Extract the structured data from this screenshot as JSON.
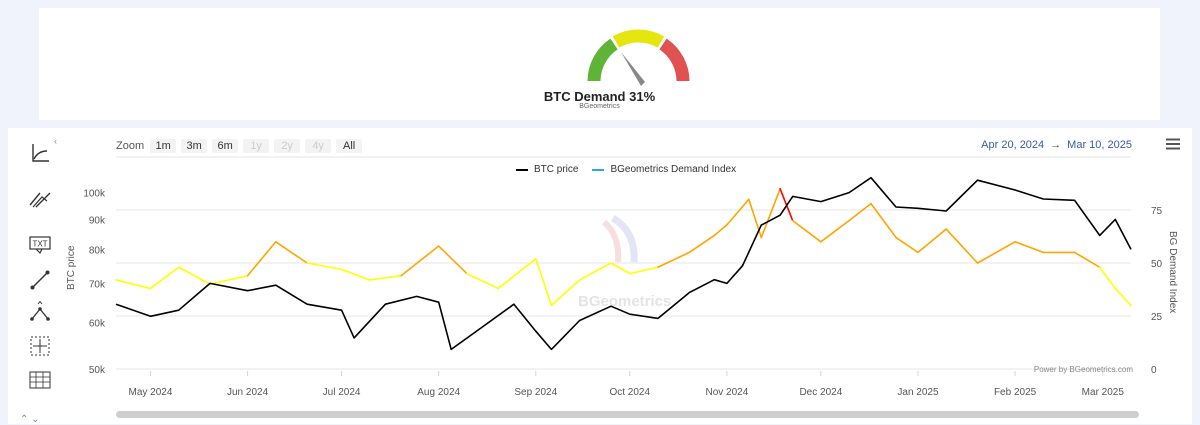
{
  "gauge": {
    "title": "BTC Demand 31%",
    "subtitle": "BGeometrics",
    "value": 31,
    "colors": {
      "low": "#5fb437",
      "mid": "#e5e510",
      "high": "#e05252",
      "needle": "#888888"
    }
  },
  "toolbar": {
    "items": [
      "line-tool-icon",
      "trend-lines-icon",
      "text-annotation-icon",
      "segment-icon",
      "angle-tool-icon",
      "crosshair-icon",
      "table-icon"
    ],
    "txt_label": "TXT"
  },
  "zoom": {
    "label": "Zoom",
    "buttons": [
      "1m",
      "3m",
      "6m",
      "1y",
      "2y",
      "4y",
      "All"
    ],
    "disabled": [
      "1y",
      "2y",
      "4y"
    ]
  },
  "range": {
    "from": "Apr 20, 2024",
    "arrow": "→",
    "to": "Mar 10, 2025"
  },
  "credit": "Power by BGeometrics.com",
  "watermark": "BGeometrics",
  "colors": {
    "price": "#000000",
    "index_legend": "#2aa8e0",
    "yellow": "#ffff00",
    "orange": "#ffa500",
    "red": "#ff0000",
    "green": "#1a8a1a"
  },
  "chart_data": {
    "type": "line",
    "series": [
      {
        "name": "BTC price",
        "axis": "left",
        "x": [
          "2024-04-20",
          "2024-05-01",
          "2024-05-10",
          "2024-05-20",
          "2024-06-01",
          "2024-06-10",
          "2024-06-20",
          "2024-07-01",
          "2024-07-05",
          "2024-07-15",
          "2024-07-25",
          "2024-08-01",
          "2024-08-05",
          "2024-08-15",
          "2024-08-25",
          "2024-09-01",
          "2024-09-06",
          "2024-09-15",
          "2024-09-25",
          "2024-10-01",
          "2024-10-10",
          "2024-10-20",
          "2024-10-28",
          "2024-11-01",
          "2024-11-06",
          "2024-11-12",
          "2024-11-18",
          "2024-11-22",
          "2024-12-01",
          "2024-12-10",
          "2024-12-17",
          "2024-12-25",
          "2025-01-01",
          "2025-01-10",
          "2025-01-20",
          "2025-02-01",
          "2025-02-10",
          "2025-02-20",
          "2025-02-28",
          "2025-03-05",
          "2025-03-10"
        ],
        "values": [
          64500,
          61500,
          63000,
          70000,
          68000,
          69500,
          64500,
          63000,
          56500,
          64500,
          66500,
          65000,
          54000,
          59000,
          64500,
          58000,
          54000,
          60500,
          64000,
          62000,
          61000,
          67500,
          71000,
          70000,
          75000,
          88000,
          91500,
          98500,
          96500,
          100000,
          106000,
          94500,
          94000,
          93000,
          105000,
          101000,
          97500,
          97000,
          84500,
          90000,
          80000
        ]
      },
      {
        "name": "BGeometrics Demand Index",
        "axis": "right",
        "x": [
          "2024-04-20",
          "2024-05-01",
          "2024-05-10",
          "2024-05-20",
          "2024-06-01",
          "2024-06-10",
          "2024-06-20",
          "2024-07-01",
          "2024-07-10",
          "2024-07-20",
          "2024-08-01",
          "2024-08-10",
          "2024-08-20",
          "2024-09-01",
          "2024-09-06",
          "2024-09-15",
          "2024-09-25",
          "2024-10-01",
          "2024-10-10",
          "2024-10-20",
          "2024-10-28",
          "2024-11-01",
          "2024-11-08",
          "2024-11-12",
          "2024-11-18",
          "2024-11-22",
          "2024-12-01",
          "2024-12-10",
          "2024-12-17",
          "2024-12-25",
          "2025-01-01",
          "2025-01-10",
          "2025-01-20",
          "2025-02-01",
          "2025-02-10",
          "2025-02-20",
          "2025-02-28",
          "2025-03-05",
          "2025-03-10"
        ],
        "values": [
          42,
          38,
          48,
          40,
          44,
          60,
          50,
          47,
          42,
          44,
          58,
          45,
          38,
          52,
          30,
          42,
          50,
          45,
          48,
          55,
          63,
          68,
          80,
          62,
          85,
          70,
          60,
          70,
          78,
          62,
          55,
          66,
          50,
          60,
          55,
          55,
          48,
          38,
          30
        ]
      }
    ],
    "left_axis": {
      "title": "BTC price",
      "ticks": [
        "50k",
        "60k",
        "70k",
        "80k",
        "90k",
        "100k"
      ],
      "ylim": [
        50000,
        115000
      ]
    },
    "right_axis": {
      "title": "BG Demand Index",
      "ticks": [
        "0",
        "25",
        "50",
        "75"
      ],
      "ylim": [
        0,
        100
      ]
    },
    "x_ticks": [
      "May 2024",
      "Jun 2024",
      "Jul 2024",
      "Aug 2024",
      "Sep 2024",
      "Oct 2024",
      "Nov 2024",
      "Dec 2024",
      "Jan 2025",
      "Feb 2025",
      "Mar 2025"
    ],
    "legend": [
      "BTC price",
      "BGeometrics Demand Index"
    ],
    "legend_position": "top",
    "grid": true,
    "index_color_bands": {
      "green": "below 25",
      "yellow": "25-50",
      "orange": "50-75",
      "red": "above 75"
    }
  }
}
